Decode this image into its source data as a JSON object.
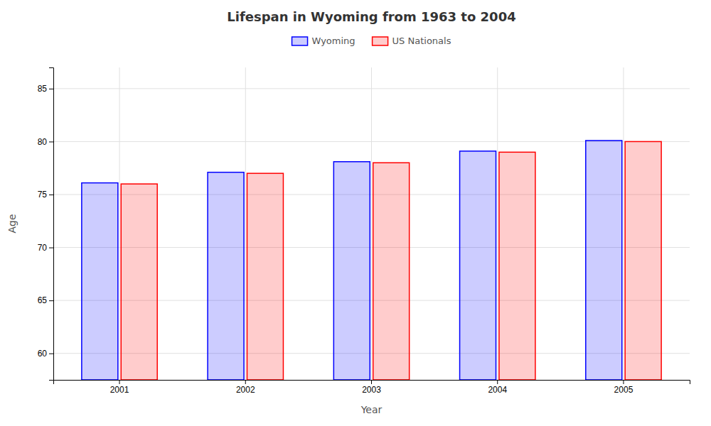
{
  "chart_data": {
    "type": "bar",
    "title": "Lifespan in Wyoming from 1963 to 2004",
    "xlabel": "Year",
    "ylabel": "Age",
    "categories": [
      "2001",
      "2002",
      "2003",
      "2004",
      "2005"
    ],
    "series": [
      {
        "name": "Wyoming",
        "color": "#0000ff",
        "values": [
          76.1,
          77.1,
          78.1,
          79.1,
          80.1
        ]
      },
      {
        "name": "US Nationals",
        "color": "#ff0000",
        "values": [
          76.0,
          77.0,
          78.0,
          79.0,
          80.0
        ]
      }
    ],
    "ylim": [
      57.5,
      87
    ],
    "yticks": [
      60,
      65,
      70,
      75,
      80,
      85
    ],
    "grid": true,
    "legend": "top"
  }
}
